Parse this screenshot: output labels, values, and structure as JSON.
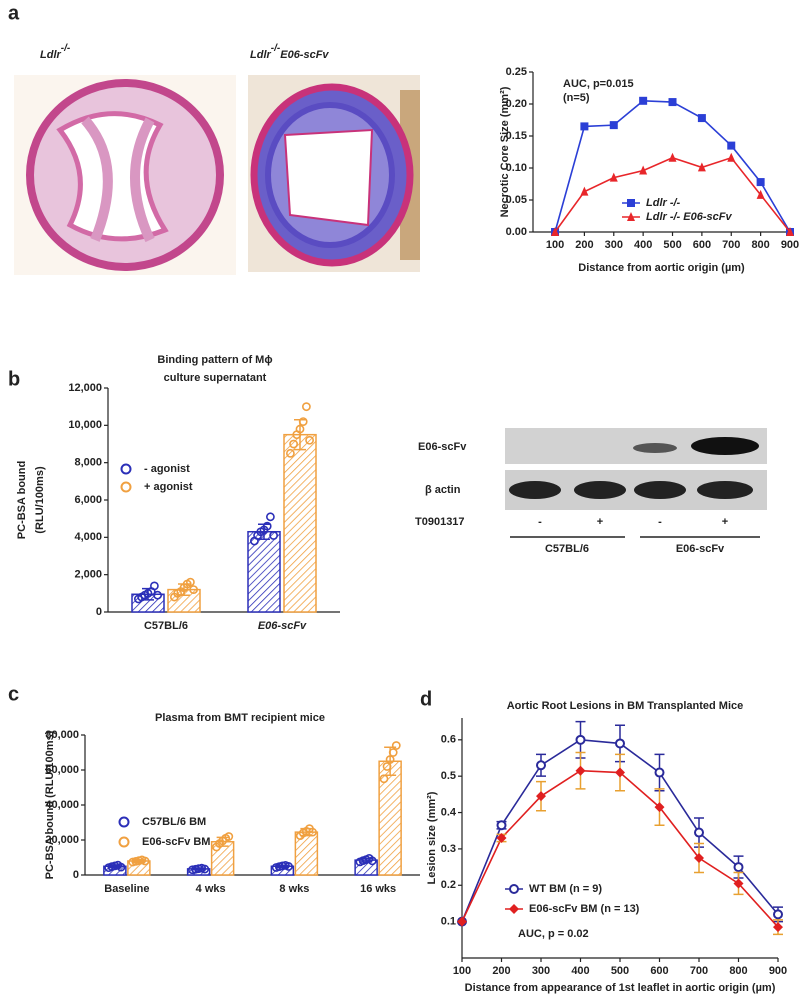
{
  "panels": [
    "a",
    "b",
    "c",
    "d"
  ],
  "images": [
    {
      "label": "Ldlr",
      "sup": "-/-"
    },
    {
      "label": "Ldlr",
      "sup": "-/-",
      "suffix": "E06-scFv"
    }
  ],
  "blot": {
    "rows": [
      "E06-scFv",
      "β actin"
    ],
    "treatment": "T0901317",
    "signs": [
      "-",
      "+",
      "-",
      "+"
    ],
    "groups": [
      "C57BL/6",
      "E06-scFv"
    ]
  },
  "chart_data": [
    {
      "type": "line",
      "annotation": [
        "AUC, p=0.015",
        "(n=5)"
      ],
      "y_label": "Necrotic Core Size (mm²)",
      "x_label": "Distance from aortic origin (µm)",
      "x": [
        100,
        200,
        300,
        400,
        500,
        600,
        700,
        800,
        900
      ],
      "xlim": [
        25,
        900
      ],
      "xticks": [
        100,
        200,
        300,
        400,
        500,
        600,
        700,
        800,
        900
      ],
      "ylim": [
        0,
        0.25
      ],
      "yticks": [
        {
          "value": 0,
          "label": "0.00"
        },
        {
          "value": 0.05,
          "label": "0.05"
        },
        {
          "value": 0.1,
          "label": "0.10"
        },
        {
          "value": 0.15,
          "label": "0.15"
        },
        {
          "value": 0.2,
          "label": "0.20"
        },
        {
          "value": 0.25,
          "label": "0.25"
        }
      ],
      "series": [
        {
          "name": "Ldlr -/-",
          "color": "#2b3fd6",
          "marker": "square",
          "values": [
            0,
            0.165,
            0.167,
            0.205,
            0.203,
            0.178,
            0.135,
            0.078,
            0
          ]
        },
        {
          "name": "Ldlr -/- E06-scFv",
          "color": "#e8262a",
          "marker": "triangle",
          "values": [
            0,
            0.063,
            0.085,
            0.096,
            0.116,
            0.101,
            0.116,
            0.058,
            0
          ]
        }
      ]
    },
    {
      "type": "bar",
      "title": [
        "Binding pattern of Mϕ",
        "culture supernatant"
      ],
      "y_label": [
        "PC-BSA bound",
        "(RLU/100ms)"
      ],
      "categories": [
        "C57BL/6",
        "E06-scFv"
      ],
      "category_style": [
        "normal",
        "italic"
      ],
      "ylim": [
        0,
        12000
      ],
      "yticks": [
        0,
        {
          "value": 2000,
          "label": "2,000"
        },
        {
          "value": 4000,
          "label": "4,000"
        },
        {
          "value": 6000,
          "label": "6,000"
        },
        {
          "value": 8000,
          "label": "8,000"
        },
        {
          "value": 10000,
          "label": "10,000"
        },
        {
          "value": 12000,
          "label": "12,000"
        }
      ],
      "series": [
        {
          "name": "- agonist",
          "color": "#2b2fb8",
          "values": [
            950,
            4300
          ],
          "errors": [
            300,
            400
          ],
          "points": [
            [
              700,
              800,
              900,
              1000,
              1100,
              1400,
              900
            ],
            [
              3800,
              4100,
              4300,
              4400,
              4600,
              5100,
              4100
            ]
          ]
        },
        {
          "name": "+ agonist",
          "color": "#f0a040",
          "values": [
            1200,
            9500
          ],
          "errors": [
            300,
            800
          ],
          "points": [
            [
              800,
              1000,
              1100,
              1300,
              1500,
              1600,
              1200
            ],
            [
              8500,
              9000,
              9500,
              9800,
              10200,
              11000,
              9200
            ]
          ]
        }
      ]
    },
    {
      "type": "bar",
      "title": [
        "Plasma from BMT recipient mice"
      ],
      "y_label": [
        "PC-BSA bound (RLU/100ms)"
      ],
      "categories": [
        "Baseline",
        "4 wks",
        "8 wks",
        "16 wks"
      ],
      "category_style": [
        "normal",
        "normal",
        "normal",
        "normal"
      ],
      "ylim": [
        0,
        80000
      ],
      "yticks": [
        0,
        {
          "value": 20000,
          "label": "20,000"
        },
        {
          "value": 40000,
          "label": "40,000"
        },
        {
          "value": 60000,
          "label": "60,000"
        },
        {
          "value": 80000,
          "label": "80,000"
        }
      ],
      "series": [
        {
          "name": "C57BL/6 BM",
          "color": "#2b2fb8",
          "values": [
            5000,
            3500,
            5000,
            8500
          ],
          "errors": [
            800,
            500,
            600,
            1000
          ],
          "points": [
            [
              4200,
              4800,
              5200,
              5600,
              4500
            ],
            [
              3000,
              3300,
              3600,
              3900,
              3400
            ],
            [
              4300,
              4800,
              5200,
              5500,
              4900
            ],
            [
              7500,
              8200,
              8800,
              9500,
              8100
            ]
          ]
        },
        {
          "name": "E06-scFv BM",
          "color": "#f0a040",
          "values": [
            8000,
            19000,
            24500,
            65000
          ],
          "errors": [
            700,
            2500,
            2000,
            8000
          ],
          "points": [
            [
              7400,
              7800,
              8200,
              8600,
              8000
            ],
            [
              16000,
              18000,
              19500,
              21000,
              22000
            ],
            [
              22500,
              24000,
              25000,
              26500,
              24500
            ],
            [
              55000,
              62000,
              66000,
              70000,
              74000
            ]
          ]
        }
      ]
    },
    {
      "type": "line",
      "title": "Aortic Root Lesions in BM Transplanted Mice",
      "annotation": [
        "AUC, p = 0.02"
      ],
      "y_label": "Lesion size (mm²)",
      "x_label": "Distance from appearance of 1st leaflet in aortic origin (µm)",
      "x": [
        100,
        200,
        300,
        400,
        500,
        600,
        700,
        800,
        900
      ],
      "xlim": [
        100,
        900
      ],
      "xticks": [
        100,
        200,
        300,
        400,
        500,
        600,
        700,
        800,
        900
      ],
      "ylim": [
        0,
        0.66
      ],
      "yticks": [
        0.1,
        0.2,
        0.3,
        0.4,
        0.5,
        0.6
      ],
      "series": [
        {
          "name": "WT BM (n = 9)",
          "color": "#2a2a9a",
          "marker": "circle",
          "values": [
            0.1,
            0.365,
            0.53,
            0.6,
            0.59,
            0.51,
            0.345,
            0.25,
            0.12
          ],
          "errors": [
            0,
            0.01,
            0.03,
            0.05,
            0.05,
            0.05,
            0.04,
            0.03,
            0.02
          ]
        },
        {
          "name": "E06-scFv BM (n = 13)",
          "color": "#e02020",
          "marker": "diamond",
          "values": [
            0.1,
            0.33,
            0.445,
            0.515,
            0.51,
            0.415,
            0.275,
            0.205,
            0.085
          ],
          "errors": [
            0,
            0.01,
            0.04,
            0.05,
            0.05,
            0.05,
            0.04,
            0.03,
            0.02
          ]
        }
      ]
    }
  ]
}
